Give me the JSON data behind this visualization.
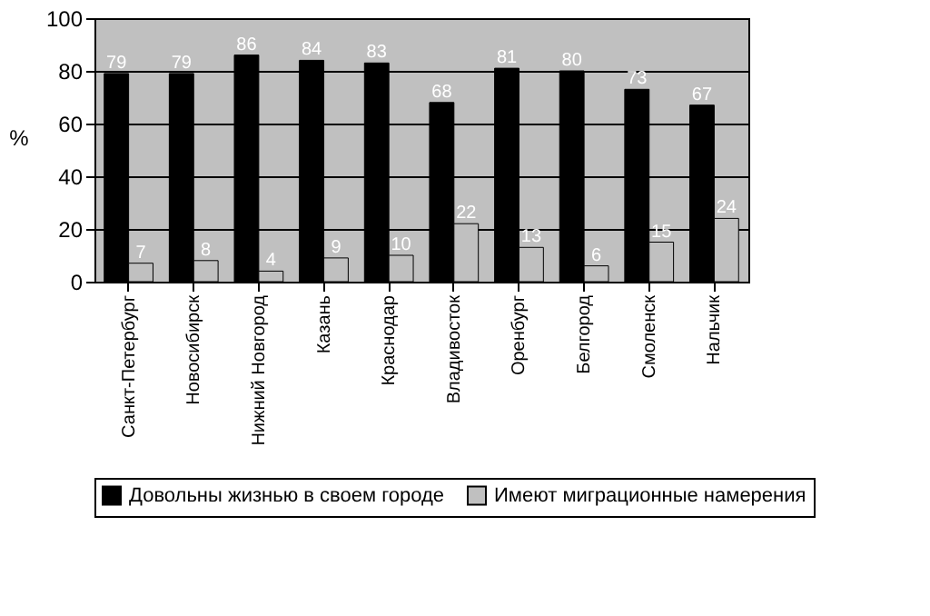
{
  "chart_data": {
    "type": "bar",
    "ylabel": "%",
    "categories": [
      "Санкт-Петербург",
      "Новосибирск",
      "Нижний Новгород",
      "Казань",
      "Краснодар",
      "Владивосток",
      "Оренбург",
      "Белгород",
      "Смоленск",
      "Нальчик"
    ],
    "series": [
      {
        "name": "Довольны жизнью в своем городе",
        "color": "#000000",
        "values": [
          79,
          79,
          86,
          84,
          83,
          68,
          81,
          80,
          73,
          67
        ]
      },
      {
        "name": "Имеют миграционные намерения",
        "color": "#c0c0c0",
        "values": [
          7,
          8,
          4,
          9,
          10,
          22,
          13,
          6,
          15,
          24
        ]
      }
    ],
    "ylim": [
      0,
      100
    ],
    "yticks": [
      0,
      20,
      40,
      60,
      80,
      100
    ],
    "grid": "y",
    "legend": "bottom",
    "data_labels": true
  }
}
